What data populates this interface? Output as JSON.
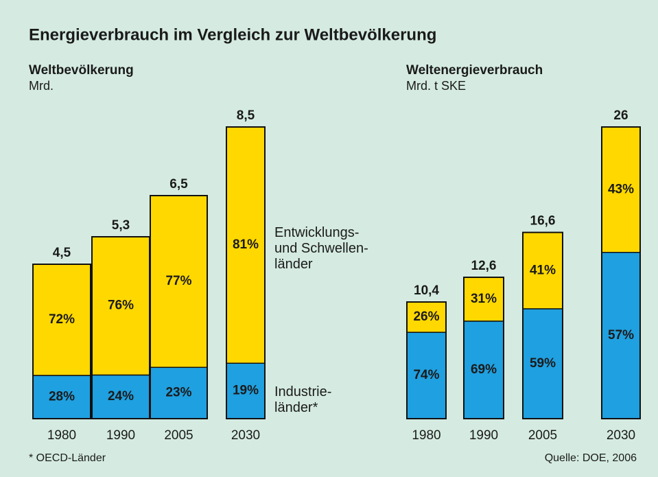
{
  "title": "Energieverbrauch im Vergleich zur Weltbevölkerung",
  "footnote": "* OECD-Länder",
  "source": "Quelle: DOE, 2006",
  "chart_data": [
    {
      "type": "bar",
      "title": "Weltbevölkerung",
      "ylabel": "Mrd.",
      "categories": [
        "1980",
        "1990",
        "2005",
        "2030"
      ],
      "values": [
        4.5,
        5.3,
        6.5,
        8.5
      ],
      "value_labels": [
        "4,5",
        "5,3",
        "6,5",
        "8,5"
      ],
      "series": [
        {
          "name": "Industrie-\nländer*",
          "color": "#1fa0e0",
          "values": [
            28,
            24,
            23,
            19
          ]
        },
        {
          "name": "Entwicklungs-\nund Schwellen-\nländer",
          "color": "#ffd800",
          "values": [
            72,
            76,
            77,
            81
          ]
        }
      ]
    },
    {
      "type": "bar",
      "title": "Weltenergieverbrauch",
      "ylabel": "Mrd. t SKE",
      "categories": [
        "1980",
        "1990",
        "2005",
        "2030"
      ],
      "values": [
        10.4,
        12.6,
        16.6,
        26
      ],
      "value_labels": [
        "10,4",
        "12,6",
        "16,6",
        "26"
      ],
      "series": [
        {
          "color": "#1fa0e0",
          "values": [
            74,
            69,
            59,
            57
          ]
        },
        {
          "color": "#ffd800",
          "values": [
            26,
            31,
            41,
            43
          ]
        }
      ]
    }
  ]
}
